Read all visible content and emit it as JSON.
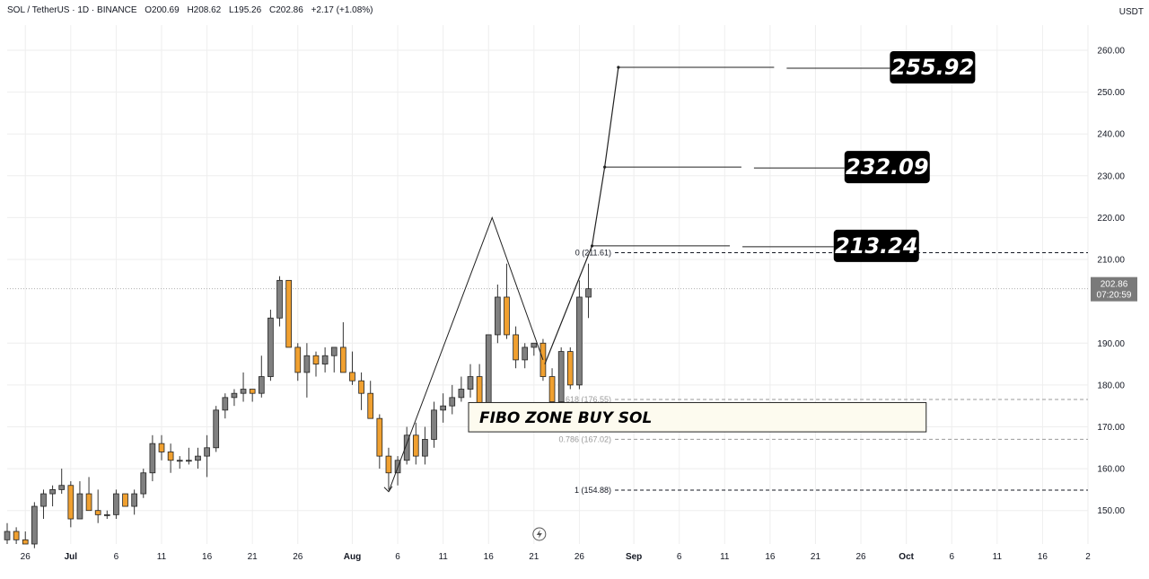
{
  "header": {
    "symbol": "SOL / TetherUS · 1D · BINANCE",
    "open": "O200.69",
    "high": "H208.62",
    "low": "L195.26",
    "close": "C202.86",
    "change": "+2.17 (+1.08%)"
  },
  "currency": "USDT",
  "price_tag": {
    "price": "202.86",
    "countdown": "07:20:59"
  },
  "y_ticks": [
    "260.00",
    "250.00",
    "240.00",
    "230.00",
    "220.00",
    "210.00",
    "190.00",
    "180.00",
    "170.00",
    "160.00",
    "150.00"
  ],
  "x_ticks": [
    {
      "label": "26",
      "date": "2024-06-26"
    },
    {
      "label": "Jul",
      "date": "2024-07-01",
      "bold": true
    },
    {
      "label": "6",
      "date": "2024-07-06"
    },
    {
      "label": "11",
      "date": "2024-07-11"
    },
    {
      "label": "16",
      "date": "2024-07-16"
    },
    {
      "label": "21",
      "date": "2024-07-21"
    },
    {
      "label": "26",
      "date": "2024-07-26"
    },
    {
      "label": "Aug",
      "date": "2024-08-01",
      "bold": true
    },
    {
      "label": "6",
      "date": "2024-08-06"
    },
    {
      "label": "11",
      "date": "2024-08-11"
    },
    {
      "label": "16",
      "date": "2024-08-16"
    },
    {
      "label": "21",
      "date": "2024-08-21"
    },
    {
      "label": "26",
      "date": "2024-08-26"
    },
    {
      "label": "Sep",
      "date": "2024-09-01",
      "bold": true
    },
    {
      "label": "6",
      "date": "2024-09-06"
    },
    {
      "label": "11",
      "date": "2024-09-11"
    },
    {
      "label": "16",
      "date": "2024-09-16"
    },
    {
      "label": "21",
      "date": "2024-09-21"
    },
    {
      "label": "26",
      "date": "2024-09-26"
    },
    {
      "label": "Oct",
      "date": "2024-10-01",
      "bold": true
    },
    {
      "label": "6",
      "date": "2024-10-06"
    },
    {
      "label": "11",
      "date": "2024-10-11"
    },
    {
      "label": "16",
      "date": "2024-10-16"
    },
    {
      "label": "2",
      "date": "2024-10-21"
    }
  ],
  "fib_levels": [
    {
      "label": "0 (211.61)",
      "price": 211.61,
      "style": "dark"
    },
    {
      "label": "0.618 (176.55)",
      "price": 176.55,
      "style": "light"
    },
    {
      "label": "0.786 (167.02)",
      "price": 167.02,
      "style": "light"
    },
    {
      "label": "1 (154.88)",
      "price": 154.88,
      "style": "dark"
    }
  ],
  "targets": [
    {
      "label": "255.92",
      "price": 255.92
    },
    {
      "label": "232.09",
      "price": 232.09
    },
    {
      "label": "213.24",
      "price": 213.24
    }
  ],
  "zone_label": "FIBO ZONE BUY SOL",
  "colors": {
    "bull": "#808080",
    "bear": "#f0a030",
    "wick": "#333333",
    "grid": "#eeeeee"
  },
  "chart_data": {
    "type": "candlestick",
    "ylim": [
      142,
      266
    ],
    "xlim": [
      "2024-06-24",
      "2024-10-21"
    ],
    "series": [
      {
        "values": [
          {
            "date": "2024-06-24",
            "open": 143,
            "high": 147,
            "low": 142,
            "close": 145
          },
          {
            "date": "2024-06-25",
            "open": 145,
            "high": 146,
            "low": 142,
            "close": 143
          },
          {
            "date": "2024-06-26",
            "open": 143,
            "high": 145,
            "low": 142,
            "close": 142
          },
          {
            "date": "2024-06-27",
            "open": 142,
            "high": 152,
            "low": 141,
            "close": 151
          },
          {
            "date": "2024-06-28",
            "open": 151,
            "high": 155,
            "low": 148,
            "close": 154
          },
          {
            "date": "2024-06-29",
            "open": 154,
            "high": 156,
            "low": 151,
            "close": 155
          },
          {
            "date": "2024-06-30",
            "open": 155,
            "high": 160,
            "low": 154,
            "close": 156
          },
          {
            "date": "2024-07-01",
            "open": 156,
            "high": 157,
            "low": 146,
            "close": 148
          },
          {
            "date": "2024-07-02",
            "open": 148,
            "high": 157,
            "low": 148,
            "close": 154
          },
          {
            "date": "2024-07-03",
            "open": 154,
            "high": 158,
            "low": 150,
            "close": 150
          },
          {
            "date": "2024-07-04",
            "open": 150,
            "high": 155,
            "low": 147,
            "close": 149
          },
          {
            "date": "2024-07-05",
            "open": 149,
            "high": 150,
            "low": 148,
            "close": 149
          },
          {
            "date": "2024-07-06",
            "open": 149,
            "high": 155,
            "low": 148,
            "close": 154
          },
          {
            "date": "2024-07-07",
            "open": 154,
            "high": 154,
            "low": 151,
            "close": 151
          },
          {
            "date": "2024-07-08",
            "open": 151,
            "high": 155,
            "low": 149,
            "close": 154
          },
          {
            "date": "2024-07-09",
            "open": 154,
            "high": 160,
            "low": 153,
            "close": 159
          },
          {
            "date": "2024-07-10",
            "open": 159,
            "high": 168,
            "low": 157,
            "close": 166
          },
          {
            "date": "2024-07-11",
            "open": 166,
            "high": 168,
            "low": 162,
            "close": 164
          },
          {
            "date": "2024-07-12",
            "open": 164,
            "high": 166,
            "low": 159,
            "close": 162
          },
          {
            "date": "2024-07-13",
            "open": 162,
            "high": 163,
            "low": 160,
            "close": 162
          },
          {
            "date": "2024-07-14",
            "open": 162,
            "high": 165,
            "low": 161,
            "close": 162
          },
          {
            "date": "2024-07-15",
            "open": 162,
            "high": 165,
            "low": 160,
            "close": 163
          },
          {
            "date": "2024-07-16",
            "open": 163,
            "high": 168,
            "low": 158,
            "close": 165
          },
          {
            "date": "2024-07-17",
            "open": 165,
            "high": 175,
            "low": 164,
            "close": 174
          },
          {
            "date": "2024-07-18",
            "open": 174,
            "high": 178,
            "low": 172,
            "close": 177
          },
          {
            "date": "2024-07-19",
            "open": 177,
            "high": 179,
            "low": 175,
            "close": 178
          },
          {
            "date": "2024-07-20",
            "open": 178,
            "high": 183,
            "low": 176,
            "close": 179
          },
          {
            "date": "2024-07-21",
            "open": 179,
            "high": 179,
            "low": 176,
            "close": 178
          },
          {
            "date": "2024-07-22",
            "open": 178,
            "high": 187,
            "low": 177,
            "close": 182
          },
          {
            "date": "2024-07-23",
            "open": 182,
            "high": 198,
            "low": 181,
            "close": 196
          },
          {
            "date": "2024-07-24",
            "open": 196,
            "high": 206,
            "low": 194,
            "close": 205
          },
          {
            "date": "2024-07-25",
            "open": 205,
            "high": 205,
            "low": 190,
            "close": 189
          },
          {
            "date": "2024-07-26",
            "open": 189,
            "high": 190,
            "low": 181,
            "close": 183
          },
          {
            "date": "2024-07-27",
            "open": 183,
            "high": 190,
            "low": 177,
            "close": 187
          },
          {
            "date": "2024-07-28",
            "open": 187,
            "high": 188,
            "low": 182,
            "close": 185
          },
          {
            "date": "2024-07-29",
            "open": 185,
            "high": 189,
            "low": 183,
            "close": 187
          },
          {
            "date": "2024-07-30",
            "open": 187,
            "high": 188,
            "low": 183,
            "close": 189
          },
          {
            "date": "2024-07-31",
            "open": 189,
            "high": 195,
            "low": 183,
            "close": 183
          },
          {
            "date": "2024-08-01",
            "open": 183,
            "high": 188,
            "low": 180,
            "close": 181
          },
          {
            "date": "2024-08-02",
            "open": 181,
            "high": 183,
            "low": 174,
            "close": 178
          },
          {
            "date": "2024-08-03",
            "open": 178,
            "high": 181,
            "low": 172,
            "close": 172
          },
          {
            "date": "2024-08-04",
            "open": 172,
            "high": 173,
            "low": 160,
            "close": 163
          },
          {
            "date": "2024-08-05",
            "open": 163,
            "high": 165,
            "low": 155,
            "close": 159
          },
          {
            "date": "2024-08-06",
            "open": 159,
            "high": 163,
            "low": 156,
            "close": 162
          },
          {
            "date": "2024-08-07",
            "open": 162,
            "high": 170,
            "low": 161,
            "close": 168
          },
          {
            "date": "2024-08-08",
            "open": 168,
            "high": 171,
            "low": 161,
            "close": 163
          },
          {
            "date": "2024-08-09",
            "open": 163,
            "high": 170,
            "low": 161,
            "close": 167
          },
          {
            "date": "2024-08-10",
            "open": 167,
            "high": 176,
            "low": 165,
            "close": 174
          },
          {
            "date": "2024-08-11",
            "open": 174,
            "high": 178,
            "low": 171,
            "close": 175
          },
          {
            "date": "2024-08-12",
            "open": 175,
            "high": 180,
            "low": 173,
            "close": 177
          },
          {
            "date": "2024-08-13",
            "open": 177,
            "high": 182,
            "low": 176,
            "close": 179
          },
          {
            "date": "2024-08-14",
            "open": 179,
            "high": 185,
            "low": 177,
            "close": 182
          },
          {
            "date": "2024-08-15",
            "open": 182,
            "high": 185,
            "low": 173,
            "close": 174
          },
          {
            "date": "2024-08-16",
            "open": 174,
            "high": 192,
            "low": 173,
            "close": 192
          },
          {
            "date": "2024-08-17",
            "open": 192,
            "high": 204,
            "low": 190,
            "close": 201
          },
          {
            "date": "2024-08-18",
            "open": 201,
            "high": 209,
            "low": 191,
            "close": 192
          },
          {
            "date": "2024-08-19",
            "open": 192,
            "high": 194,
            "low": 184,
            "close": 186
          },
          {
            "date": "2024-08-20",
            "open": 186,
            "high": 190,
            "low": 184,
            "close": 189
          },
          {
            "date": "2024-08-21",
            "open": 189,
            "high": 190,
            "low": 187,
            "close": 190
          },
          {
            "date": "2024-08-22",
            "open": 190,
            "high": 191,
            "low": 181,
            "close": 182
          },
          {
            "date": "2024-08-23",
            "open": 182,
            "high": 184,
            "low": 176,
            "close": 176
          },
          {
            "date": "2024-08-24",
            "open": 176,
            "high": 189,
            "low": 176,
            "close": 188
          },
          {
            "date": "2024-08-25",
            "open": 188,
            "high": 189,
            "low": 179,
            "close": 180
          },
          {
            "date": "2024-08-26",
            "open": 180,
            "high": 205,
            "low": 179,
            "close": 201
          },
          {
            "date": "2024-08-27",
            "open": 201,
            "high": 209,
            "low": 196,
            "close": 203
          }
        ]
      }
    ]
  }
}
